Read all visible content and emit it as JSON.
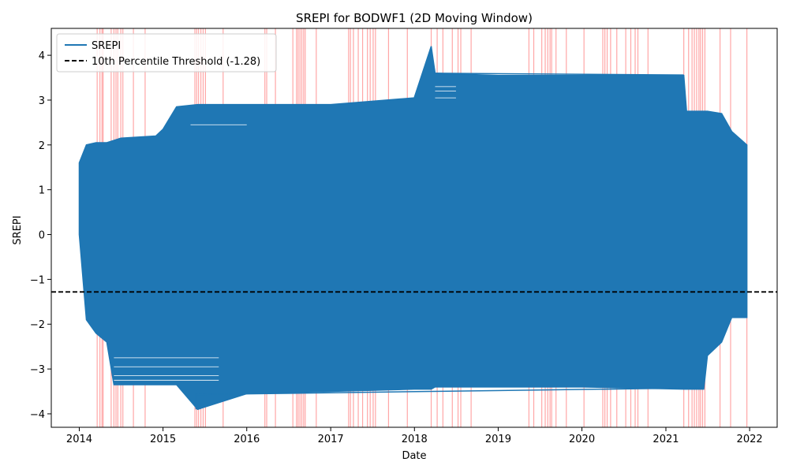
{
  "chart_data": {
    "type": "line",
    "title": "SREPI for BODWF1 (2D Moving Window)",
    "xlabel": "Date",
    "ylabel": "SREPI",
    "xlim": [
      "2013-09-01",
      "2022-05-01"
    ],
    "ylim": [
      -4.3,
      4.6
    ],
    "x_ticks": [
      "2014",
      "2015",
      "2016",
      "2017",
      "2018",
      "2019",
      "2020",
      "2021",
      "2022"
    ],
    "y_ticks": [
      -4,
      -3,
      -2,
      -1,
      0,
      1,
      2,
      3,
      4
    ],
    "y_tick_labels": [
      "−4",
      "−3",
      "−2",
      "−1",
      "0",
      "1",
      "2",
      "3",
      "4"
    ],
    "grid": false,
    "legend_placement": "top-left",
    "series": [
      {
        "name": "SREPI",
        "color": "#1f77b4",
        "style": "solid",
        "envelope": [
          {
            "date": "2014-01-01",
            "max": 1.6,
            "min": 0.0
          },
          {
            "date": "2014-02-01",
            "max": 2.0,
            "min": -1.9
          },
          {
            "date": "2014-03-15",
            "max": 2.05,
            "min": -2.2
          },
          {
            "date": "2014-05-01",
            "max": 2.05,
            "min": -2.4
          },
          {
            "date": "2014-06-01",
            "max": 2.1,
            "min": -3.35
          },
          {
            "date": "2014-07-01",
            "max": 2.15,
            "min": -3.35
          },
          {
            "date": "2014-12-01",
            "max": 2.2,
            "min": -3.35
          },
          {
            "date": "2015-01-01",
            "max": 2.35,
            "min": -3.35
          },
          {
            "date": "2015-03-01",
            "max": 2.85,
            "min": -3.35
          },
          {
            "date": "2015-06-01",
            "max": 2.9,
            "min": -3.9
          },
          {
            "date": "2016-01-01",
            "max": 2.9,
            "min": -3.55
          },
          {
            "date": "2017-01-01",
            "max": 2.9,
            "min": -3.5
          },
          {
            "date": "2017-12-31",
            "max": 3.05,
            "min": -3.45
          },
          {
            "date": "2018-03-15",
            "max": 4.2,
            "min": -3.45
          },
          {
            "date": "2018-04-01",
            "max": 3.6,
            "min": -3.4
          },
          {
            "date": "2019-01-01",
            "max": 3.55,
            "min": -3.4
          },
          {
            "date": "2020-01-01",
            "max": 3.55,
            "min": -3.4
          },
          {
            "date": "2021-03-20",
            "max": 3.55,
            "min": -3.45
          },
          {
            "date": "2021-04-01",
            "max": 2.75,
            "min": -3.45
          },
          {
            "date": "2021-06-15",
            "max": 2.75,
            "min": -3.45
          },
          {
            "date": "2021-07-01",
            "max": 2.75,
            "min": -2.7
          },
          {
            "date": "2021-09-01",
            "max": 2.7,
            "min": -2.4
          },
          {
            "date": "2021-10-15",
            "max": 2.3,
            "min": -1.85
          },
          {
            "date": "2021-12-20",
            "max": 2.0,
            "min": -1.85
          }
        ],
        "spike_top": {
          "date": "2018-03-15",
          "value": 4.2
        },
        "spike_bottom": {
          "date": "2015-05-25",
          "value": -3.9
        }
      },
      {
        "name": "10th Percentile Threshold (-1.28)",
        "color": "#000000",
        "style": "dashed",
        "value": -1.28
      }
    ],
    "highlight_color": "#ff0000",
    "highlight_dates": [
      "2014-03-20",
      "2014-04-01",
      "2014-04-10",
      "2014-04-15",
      "2014-05-20",
      "2014-06-01",
      "2014-06-10",
      "2014-06-18",
      "2014-07-01",
      "2014-07-10",
      "2014-08-25",
      "2014-10-15",
      "2015-05-20",
      "2015-05-28",
      "2015-06-05",
      "2015-06-15",
      "2015-06-25",
      "2015-07-05",
      "2015-09-20",
      "2016-03-20",
      "2016-03-28",
      "2016-05-05",
      "2016-07-20",
      "2016-08-05",
      "2016-08-12",
      "2016-08-20",
      "2016-08-28",
      "2016-09-05",
      "2016-09-12",
      "2016-10-30",
      "2017-03-20",
      "2017-03-28",
      "2017-04-10",
      "2017-05-01",
      "2017-05-20",
      "2017-06-10",
      "2017-06-22",
      "2017-07-05",
      "2017-07-15",
      "2017-09-10",
      "2017-12-01",
      "2018-03-15",
      "2018-04-10",
      "2018-05-05",
      "2018-06-15",
      "2018-07-10",
      "2018-07-22",
      "2018-09-05",
      "2019-05-15",
      "2019-06-05",
      "2019-07-10",
      "2019-07-25",
      "2019-08-05",
      "2019-08-15",
      "2019-08-22",
      "2019-09-10",
      "2019-10-25",
      "2020-01-10",
      "2020-04-01",
      "2020-04-10",
      "2020-04-20",
      "2020-05-05",
      "2020-06-01",
      "2020-07-10",
      "2020-08-01",
      "2020-08-20",
      "2020-09-01",
      "2020-10-15",
      "2021-03-20",
      "2021-04-10",
      "2021-04-25",
      "2021-05-05",
      "2021-05-15",
      "2021-05-25",
      "2021-06-01",
      "2021-06-10",
      "2021-06-20",
      "2021-08-25",
      "2021-10-10",
      "2021-12-20"
    ]
  }
}
